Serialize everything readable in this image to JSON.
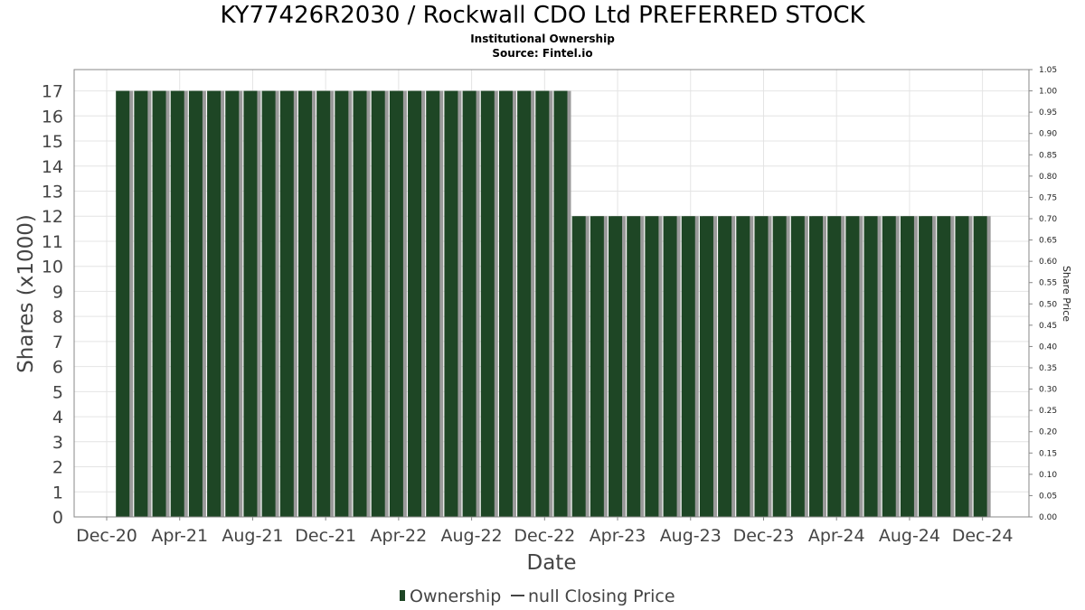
{
  "chart_data": {
    "type": "bar",
    "title": "KY77426R2030 / Rockwall CDO Ltd PREFERRED STOCK",
    "subtitle": "Institutional Ownership",
    "source": "Source: Fintel.io",
    "xlabel": "Date",
    "ylabel": "Shares (x1000)",
    "y2label": "Share Price",
    "ylim": [
      0,
      17.85
    ],
    "y2lim": [
      0,
      1.05
    ],
    "yticks": [
      "0",
      "1",
      "2",
      "3",
      "4",
      "5",
      "6",
      "7",
      "8",
      "9",
      "10",
      "11",
      "12",
      "13",
      "14",
      "15",
      "16",
      "17"
    ],
    "y2ticks": [
      "0.00",
      "0.05",
      "0.10",
      "0.15",
      "0.20",
      "0.25",
      "0.30",
      "0.35",
      "0.40",
      "0.45",
      "0.50",
      "0.55",
      "0.60",
      "0.65",
      "0.70",
      "0.75",
      "0.80",
      "0.85",
      "0.90",
      "0.95",
      "1.00",
      "1.05"
    ],
    "xticks": [
      "Dec-20",
      "Apr-21",
      "Aug-21",
      "Dec-21",
      "Apr-22",
      "Aug-22",
      "Dec-22",
      "Apr-23",
      "Aug-23",
      "Dec-23",
      "Apr-24",
      "Aug-24",
      "Dec-24"
    ],
    "series": [
      {
        "name": "Ownership",
        "color": "#1e4625",
        "start_month_offset": 1,
        "values": [
          17,
          17,
          17,
          17,
          17,
          17,
          17,
          17,
          17,
          17,
          17,
          17,
          17,
          17,
          17,
          17,
          17,
          17,
          17,
          17,
          17,
          17,
          17,
          17,
          17,
          12,
          12,
          12,
          12,
          12,
          12,
          12,
          12,
          12,
          12,
          12,
          12,
          12,
          12,
          12,
          12,
          12,
          12,
          12,
          12,
          12,
          12,
          12
        ]
      },
      {
        "name": "null Closing Price",
        "color": "#555555",
        "values": []
      }
    ],
    "grid": true,
    "legend": "bottom-center"
  }
}
